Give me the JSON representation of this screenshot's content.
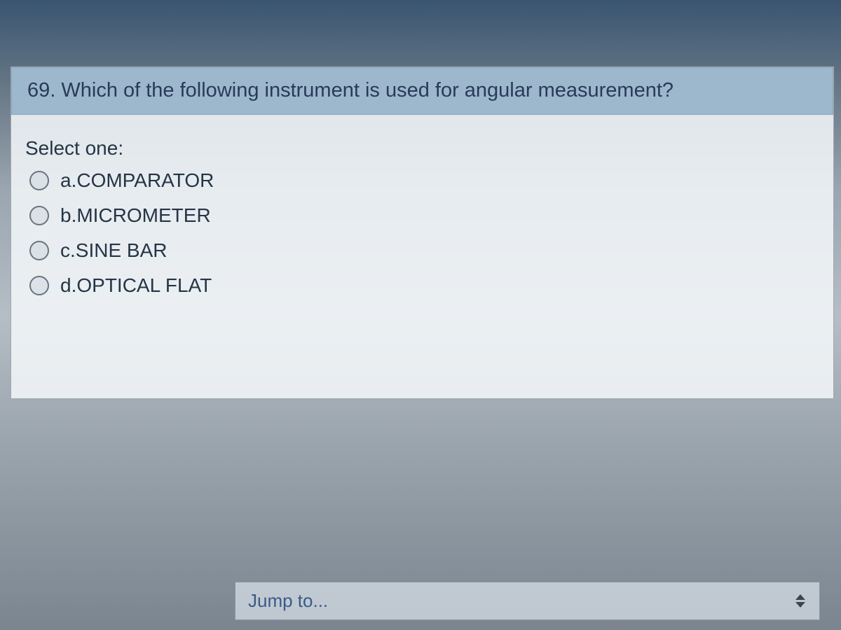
{
  "question": {
    "text": "69. Which of the following instrument is used for angular measurement?",
    "select_label": "Select one:",
    "options": [
      {
        "prefix": "a.",
        "label": "COMPARATOR"
      },
      {
        "prefix": "b.",
        "label": "MICROMETER"
      },
      {
        "prefix": "c.",
        "label": "SINE BAR"
      },
      {
        "prefix": "d.",
        "label": "OPTICAL FLAT"
      }
    ]
  },
  "navigation": {
    "jump_to_label": "Jump to..."
  },
  "colors": {
    "question_header_bg": "#9db8cc",
    "text_primary": "#2a3a5a",
    "text_body": "#253545",
    "link_color": "#3a5a8a"
  }
}
